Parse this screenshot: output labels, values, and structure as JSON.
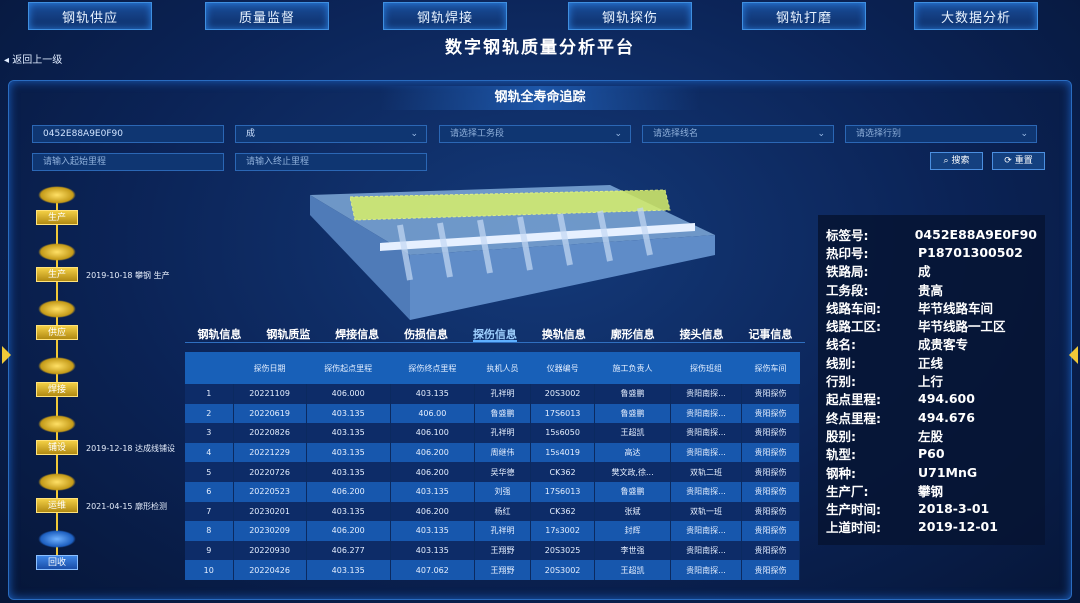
{
  "nav": [
    "钢轨供应",
    "质量监督",
    "钢轨焊接",
    "钢轨探伤",
    "钢轨打磨",
    "大数据分析"
  ],
  "title": "数字钢轨质量分析平台",
  "back": "返回上一级",
  "subtitle": "钢轨全寿命追踪",
  "filters": {
    "tag": "0452E88A9E0F90",
    "bureau": "成",
    "section_ph": "请选择工务段",
    "line_ph": "请选择线名",
    "dir_ph": "请选择行别",
    "start_ph": "请输入起始里程",
    "end_ph": "请输入终止里程",
    "search": "搜索",
    "reset": "重置"
  },
  "timeline": [
    {
      "label": "生产",
      "event": ""
    },
    {
      "label": "生产",
      "event": "2019-10-18 攀钢 生产"
    },
    {
      "label": "供应",
      "event": ""
    },
    {
      "label": "焊接",
      "event": ""
    },
    {
      "label": "铺设",
      "event": "2019-12-18 达成线铺设"
    },
    {
      "label": "运维",
      "event": "2021-04-15 廓形检测"
    },
    {
      "label": "回收",
      "event": ""
    }
  ],
  "info": [
    [
      "标签号:",
      "0452E88A9E0F90"
    ],
    [
      "热印号:",
      "P18701300502"
    ],
    [
      "铁路局:",
      "成"
    ],
    [
      "工务段:",
      "贵高"
    ],
    [
      "线路车间:",
      "毕节线路车间"
    ],
    [
      "线路工区:",
      "毕节线路一工区"
    ],
    [
      "线名:",
      "成贵客专"
    ],
    [
      "线别:",
      "正线"
    ],
    [
      "行别:",
      "上行"
    ],
    [
      "起点里程:",
      "494.600"
    ],
    [
      "终点里程:",
      "494.676"
    ],
    [
      "股别:",
      "左股"
    ],
    [
      "轨型:",
      "P60"
    ],
    [
      "钢种:",
      "U71MnG"
    ],
    [
      "生产厂:",
      "攀钢"
    ],
    [
      "生产时间:",
      "2018-3-01"
    ],
    [
      "上道时间:",
      "2019-12-01"
    ]
  ],
  "tabs": [
    "钢轨信息",
    "钢轨质监",
    "焊接信息",
    "伤损信息",
    "探伤信息",
    "换轨信息",
    "廓形信息",
    "接头信息",
    "记事信息"
  ],
  "active_tab": 4,
  "table": {
    "headers": [
      "",
      "探伤日期",
      "探伤起点里程",
      "探伤终点里程",
      "执机人员",
      "仪器编号",
      "施工负责人",
      "探伤班组",
      "探伤车间"
    ],
    "rows": [
      [
        "1",
        "20221109",
        "406.000",
        "403.135",
        "孔祥明",
        "20S3002",
        "鲁盛鹏",
        "贵阳南探...",
        "贵阳探伤"
      ],
      [
        "2",
        "20220619",
        "403.135",
        "406.00",
        "鲁盛鹏",
        "17S6013",
        "鲁盛鹏",
        "贵阳南探...",
        "贵阳探伤"
      ],
      [
        "3",
        "20220826",
        "403.135",
        "406.100",
        "孔祥明",
        "15s6050",
        "王超凯",
        "贵阳南探...",
        "贵阳探伤"
      ],
      [
        "4",
        "20221229",
        "403.135",
        "406.200",
        "周继伟",
        "15s4019",
        "高达",
        "贵阳南探...",
        "贵阳探伤"
      ],
      [
        "5",
        "20220726",
        "403.135",
        "406.200",
        "吴华德",
        "CK362",
        "樊文政,徐...",
        "双轨二班",
        "贵阳探伤"
      ],
      [
        "6",
        "20220523",
        "406.200",
        "403.135",
        "刘强",
        "17S6013",
        "鲁盛鹏",
        "贵阳南探...",
        "贵阳探伤"
      ],
      [
        "7",
        "20230201",
        "403.135",
        "406.200",
        "杨红",
        "CK362",
        "张斌",
        "双轨一班",
        "贵阳探伤"
      ],
      [
        "8",
        "20230209",
        "406.200",
        "403.135",
        "孔祥明",
        "17s3002",
        "封辉",
        "贵阳南探...",
        "贵阳探伤"
      ],
      [
        "9",
        "20220930",
        "406.277",
        "403.135",
        "王翔野",
        "20S3025",
        "李世强",
        "贵阳南探...",
        "贵阳探伤"
      ],
      [
        "10",
        "20220426",
        "403.135",
        "407.062",
        "王翔野",
        "20S3002",
        "王超凯",
        "贵阳南探...",
        "贵阳探伤"
      ]
    ]
  },
  "colors": {
    "accent": "#f0c938",
    "header": "#1860b8"
  }
}
